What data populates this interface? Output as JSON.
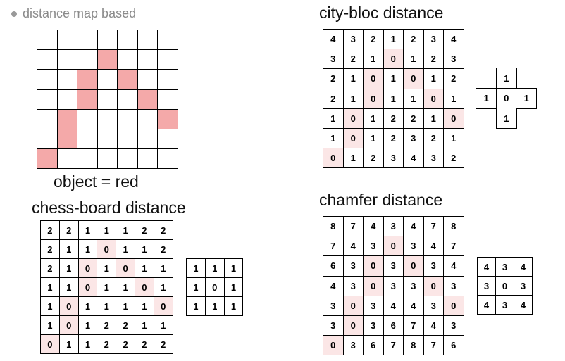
{
  "bullet": {
    "text": "distance map based"
  },
  "caption": "object = red",
  "headings": {
    "city_bloc": "city-bloc distance",
    "chess_board": "chess-board distance",
    "chamfer": "chamfer distance"
  },
  "colors": {
    "object_red": "#f4a9a9",
    "zero_highlight": "#fbe6e6",
    "bullet_gray": "#9a9a9a"
  },
  "object_grid": {
    "rows": 7,
    "cols": 7,
    "red_cells": [
      [
        1,
        3
      ],
      [
        2,
        2
      ],
      [
        2,
        4
      ],
      [
        3,
        2
      ],
      [
        3,
        5
      ],
      [
        4,
        1
      ],
      [
        4,
        6
      ],
      [
        5,
        1
      ],
      [
        6,
        0
      ]
    ]
  },
  "city_bloc_grid": [
    [
      "4",
      "3",
      "2",
      "1",
      "2",
      "3",
      "4"
    ],
    [
      "3",
      "2",
      "1",
      "0",
      "1",
      "2",
      "3"
    ],
    [
      "2",
      "1",
      "0",
      "1",
      "0",
      "1",
      "2"
    ],
    [
      "2",
      "1",
      "0",
      "1",
      "1",
      "0",
      "1"
    ],
    [
      "1",
      "0",
      "1",
      "2",
      "2",
      "1",
      "0"
    ],
    [
      "1",
      "0",
      "1",
      "2",
      "3",
      "2",
      "1"
    ],
    [
      "0",
      "1",
      "2",
      "3",
      "4",
      "3",
      "2"
    ]
  ],
  "city_bloc_mask": [
    [
      "",
      "1",
      ""
    ],
    [
      "1",
      "0",
      "1"
    ],
    [
      "",
      "1",
      ""
    ]
  ],
  "chess_board_grid": [
    [
      "2",
      "2",
      "1",
      "1",
      "1",
      "2",
      "2"
    ],
    [
      "2",
      "1",
      "1",
      "0",
      "1",
      "1",
      "2"
    ],
    [
      "2",
      "1",
      "0",
      "1",
      "0",
      "1",
      "1"
    ],
    [
      "1",
      "1",
      "0",
      "1",
      "1",
      "0",
      "1"
    ],
    [
      "1",
      "0",
      "1",
      "1",
      "1",
      "1",
      "0"
    ],
    [
      "1",
      "0",
      "1",
      "2",
      "2",
      "1",
      "1"
    ],
    [
      "0",
      "1",
      "1",
      "2",
      "2",
      "2",
      "2"
    ]
  ],
  "chess_board_mask": [
    [
      "1",
      "1",
      "1"
    ],
    [
      "1",
      "0",
      "1"
    ],
    [
      "1",
      "1",
      "1"
    ]
  ],
  "chamfer_grid": [
    [
      "8",
      "7",
      "4",
      "3",
      "4",
      "7",
      "8"
    ],
    [
      "7",
      "4",
      "3",
      "0",
      "3",
      "4",
      "7"
    ],
    [
      "6",
      "3",
      "0",
      "3",
      "0",
      "3",
      "4"
    ],
    [
      "4",
      "3",
      "0",
      "3",
      "3",
      "0",
      "3"
    ],
    [
      "3",
      "0",
      "3",
      "4",
      "4",
      "3",
      "0"
    ],
    [
      "3",
      "0",
      "3",
      "6",
      "7",
      "4",
      "3"
    ],
    [
      "0",
      "3",
      "6",
      "7",
      "8",
      "7",
      "6"
    ]
  ],
  "chamfer_mask": [
    [
      "4",
      "3",
      "4"
    ],
    [
      "3",
      "0",
      "3"
    ],
    [
      "4",
      "3",
      "4"
    ]
  ]
}
